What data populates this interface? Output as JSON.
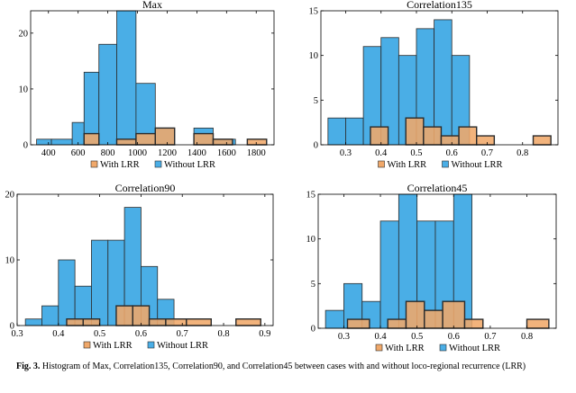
{
  "colors": {
    "without": "#4aaee6",
    "with": "#f0a86a",
    "edge": "#2b2b2b"
  },
  "chart_data": [
    {
      "type": "bar",
      "title": "Max",
      "xlim": [
        280,
        1920
      ],
      "ylim": [
        0,
        24
      ],
      "xticks": [
        400,
        600,
        800,
        1000,
        1200,
        1400,
        1600,
        1800
      ],
      "yticks": [
        0,
        10,
        20
      ],
      "legend": [
        "With LRR",
        "Without LRR"
      ],
      "legend_position": "bottom",
      "series": [
        {
          "name": "Without LRR",
          "bins": [
            [
              320,
              420,
              1
            ],
            [
              420,
              560,
              1
            ],
            [
              560,
              640,
              4
            ],
            [
              640,
              740,
              13
            ],
            [
              740,
              860,
              18
            ],
            [
              860,
              990,
              24
            ],
            [
              990,
              1120,
              11
            ],
            [
              1120,
              1250,
              3
            ],
            [
              1380,
              1510,
              3
            ],
            [
              1510,
              1660,
              1
            ]
          ]
        },
        {
          "name": "With LRR",
          "bins": [
            [
              640,
              740,
              2
            ],
            [
              860,
              990,
              1
            ],
            [
              990,
              1120,
              2
            ],
            [
              1120,
              1250,
              3
            ],
            [
              1380,
              1510,
              2
            ],
            [
              1510,
              1640,
              1
            ],
            [
              1740,
              1870,
              1
            ]
          ]
        }
      ]
    },
    {
      "type": "bar",
      "title": "Correlation135",
      "xlim": [
        0.23,
        0.9
      ],
      "ylim": [
        0,
        15
      ],
      "xticks": [
        0.3,
        0.4,
        0.5,
        0.6,
        0.7,
        0.8
      ],
      "xticklabels": [
        "0.3",
        "0.4",
        "0.5",
        "0.6",
        "0.7",
        "0.8"
      ],
      "yticks": [
        0,
        5,
        10,
        15
      ],
      "legend": [
        "With LRR",
        "Without LRR"
      ],
      "legend_position": "bottom",
      "series": [
        {
          "name": "Without LRR",
          "bins": [
            [
              0.25,
              0.3,
              3
            ],
            [
              0.3,
              0.35,
              3
            ],
            [
              0.35,
              0.4,
              11
            ],
            [
              0.4,
              0.45,
              12
            ],
            [
              0.45,
              0.5,
              10
            ],
            [
              0.5,
              0.55,
              13
            ],
            [
              0.55,
              0.6,
              14
            ],
            [
              0.6,
              0.65,
              10
            ]
          ]
        },
        {
          "name": "With LRR",
          "bins": [
            [
              0.37,
              0.42,
              2
            ],
            [
              0.47,
              0.52,
              3
            ],
            [
              0.52,
              0.57,
              2
            ],
            [
              0.57,
              0.62,
              1
            ],
            [
              0.62,
              0.67,
              2
            ],
            [
              0.67,
              0.72,
              1
            ],
            [
              0.83,
              0.88,
              1
            ]
          ]
        }
      ]
    },
    {
      "type": "bar",
      "title": "Correlation90",
      "xlim": [
        0.3,
        0.92
      ],
      "ylim": [
        0,
        20
      ],
      "xticks": [
        0.3,
        0.4,
        0.5,
        0.6,
        0.7,
        0.8,
        0.9
      ],
      "xticklabels": [
        "0.3",
        "0.4",
        "0.5",
        "0.6",
        "0.7",
        "0.8",
        "0.9"
      ],
      "yticks": [
        0,
        10,
        20
      ],
      "legend": [
        "With LRR",
        "Without LRR"
      ],
      "legend_position": "bottom",
      "series": [
        {
          "name": "Without LRR",
          "bins": [
            [
              0.32,
              0.36,
              1
            ],
            [
              0.36,
              0.4,
              3
            ],
            [
              0.4,
              0.44,
              10
            ],
            [
              0.44,
              0.48,
              6
            ],
            [
              0.48,
              0.52,
              13
            ],
            [
              0.52,
              0.56,
              13
            ],
            [
              0.56,
              0.6,
              18
            ],
            [
              0.6,
              0.64,
              9
            ],
            [
              0.64,
              0.68,
              4
            ]
          ]
        },
        {
          "name": "With LRR",
          "bins": [
            [
              0.42,
              0.46,
              1
            ],
            [
              0.46,
              0.5,
              1
            ],
            [
              0.54,
              0.58,
              3
            ],
            [
              0.58,
              0.62,
              3
            ],
            [
              0.62,
              0.66,
              1
            ],
            [
              0.66,
              0.71,
              1
            ],
            [
              0.71,
              0.77,
              1
            ],
            [
              0.83,
              0.89,
              1
            ]
          ]
        }
      ]
    },
    {
      "type": "bar",
      "title": "Correlation45",
      "xlim": [
        0.23,
        0.88
      ],
      "ylim": [
        0,
        15
      ],
      "xticks": [
        0.3,
        0.4,
        0.5,
        0.6,
        0.7,
        0.8
      ],
      "xticklabels": [
        "0.3",
        "0.4",
        "0.5",
        "0.6",
        "0.7",
        "0.8"
      ],
      "yticks": [
        0,
        5,
        10,
        15
      ],
      "legend": [
        "With LRR",
        "Without LRR"
      ],
      "legend_position": "bottom",
      "series": [
        {
          "name": "Without LRR",
          "bins": [
            [
              0.25,
              0.3,
              2
            ],
            [
              0.3,
              0.35,
              5
            ],
            [
              0.35,
              0.4,
              3
            ],
            [
              0.4,
              0.45,
              12
            ],
            [
              0.45,
              0.5,
              15
            ],
            [
              0.5,
              0.55,
              12
            ],
            [
              0.55,
              0.6,
              12
            ],
            [
              0.6,
              0.65,
              15
            ]
          ]
        },
        {
          "name": "With LRR",
          "bins": [
            [
              0.31,
              0.37,
              1
            ],
            [
              0.42,
              0.47,
              1
            ],
            [
              0.47,
              0.52,
              3
            ],
            [
              0.52,
              0.57,
              2
            ],
            [
              0.57,
              0.63,
              3
            ],
            [
              0.63,
              0.68,
              1
            ],
            [
              0.8,
              0.86,
              1
            ]
          ]
        }
      ]
    }
  ],
  "caption": {
    "label": "Fig. 3.",
    "text": " Histogram of Max, Correlation135, Correlation90, and Correlation45 between cases with and without loco-regional recurrence (LRR)"
  }
}
